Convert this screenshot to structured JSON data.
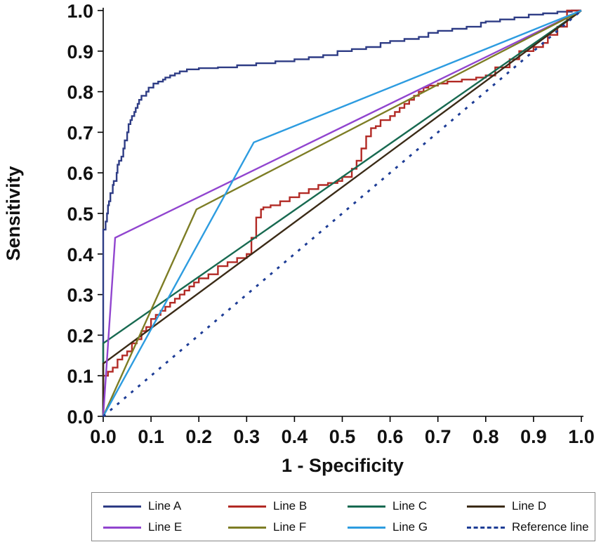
{
  "chart_data": {
    "type": "line",
    "subtype": "roc-curves",
    "title": "",
    "xlabel": "1 - Specificity",
    "ylabel": "Sensitivity",
    "xlim": [
      0,
      1
    ],
    "ylim": [
      0,
      1
    ],
    "x_ticks": [
      "0.0",
      "0.1",
      "0.2",
      "0.3",
      "0.4",
      "0.5",
      "0.6",
      "0.7",
      "0.8",
      "0.9",
      "1.0"
    ],
    "y_ticks": [
      "0.0",
      "0.1",
      "0.2",
      "0.3",
      "0.4",
      "0.5",
      "0.6",
      "0.7",
      "0.8",
      "0.9",
      "1.0"
    ],
    "grid": false,
    "legend_position": "bottom",
    "axis_color": "#000000",
    "text_color": "#111111",
    "series": [
      {
        "name": "Line A",
        "color": "#2e3c85",
        "step": true,
        "dashed": false,
        "points": [
          [
            0,
            0
          ],
          [
            0,
            0.44
          ],
          [
            0.005,
            0.46
          ],
          [
            0.008,
            0.48
          ],
          [
            0.01,
            0.5
          ],
          [
            0.012,
            0.52
          ],
          [
            0.015,
            0.53
          ],
          [
            0.02,
            0.55
          ],
          [
            0.022,
            0.57
          ],
          [
            0.028,
            0.58
          ],
          [
            0.03,
            0.6
          ],
          [
            0.033,
            0.62
          ],
          [
            0.038,
            0.63
          ],
          [
            0.042,
            0.64
          ],
          [
            0.045,
            0.66
          ],
          [
            0.05,
            0.68
          ],
          [
            0.053,
            0.7
          ],
          [
            0.057,
            0.72
          ],
          [
            0.06,
            0.73
          ],
          [
            0.065,
            0.74
          ],
          [
            0.068,
            0.75
          ],
          [
            0.072,
            0.76
          ],
          [
            0.075,
            0.77
          ],
          [
            0.08,
            0.78
          ],
          [
            0.09,
            0.79
          ],
          [
            0.095,
            0.8
          ],
          [
            0.105,
            0.81
          ],
          [
            0.115,
            0.82
          ],
          [
            0.125,
            0.825
          ],
          [
            0.13,
            0.83
          ],
          [
            0.14,
            0.835
          ],
          [
            0.15,
            0.84
          ],
          [
            0.16,
            0.845
          ],
          [
            0.175,
            0.85
          ],
          [
            0.2,
            0.855
          ],
          [
            0.24,
            0.858
          ],
          [
            0.28,
            0.86
          ],
          [
            0.32,
            0.865
          ],
          [
            0.36,
            0.87
          ],
          [
            0.4,
            0.875
          ],
          [
            0.43,
            0.88
          ],
          [
            0.46,
            0.885
          ],
          [
            0.49,
            0.89
          ],
          [
            0.52,
            0.9
          ],
          [
            0.55,
            0.905
          ],
          [
            0.58,
            0.91
          ],
          [
            0.6,
            0.92
          ],
          [
            0.63,
            0.925
          ],
          [
            0.66,
            0.93
          ],
          [
            0.68,
            0.935
          ],
          [
            0.7,
            0.945
          ],
          [
            0.73,
            0.95
          ],
          [
            0.76,
            0.955
          ],
          [
            0.79,
            0.96
          ],
          [
            0.8,
            0.97
          ],
          [
            0.83,
            0.973
          ],
          [
            0.86,
            0.978
          ],
          [
            0.89,
            0.983
          ],
          [
            0.92,
            0.99
          ],
          [
            0.95,
            0.993
          ],
          [
            0.98,
            0.997
          ],
          [
            1,
            1
          ]
        ]
      },
      {
        "name": "Line B",
        "color": "#b22a25",
        "step": true,
        "dashed": false,
        "points": [
          [
            0,
            0
          ],
          [
            0,
            0.08
          ],
          [
            0.01,
            0.1
          ],
          [
            0.02,
            0.11
          ],
          [
            0.03,
            0.12
          ],
          [
            0.04,
            0.14
          ],
          [
            0.05,
            0.15
          ],
          [
            0.06,
            0.16
          ],
          [
            0.07,
            0.18
          ],
          [
            0.08,
            0.19
          ],
          [
            0.09,
            0.21
          ],
          [
            0.1,
            0.22
          ],
          [
            0.11,
            0.24
          ],
          [
            0.12,
            0.25
          ],
          [
            0.13,
            0.26
          ],
          [
            0.14,
            0.27
          ],
          [
            0.15,
            0.28
          ],
          [
            0.16,
            0.29
          ],
          [
            0.17,
            0.3
          ],
          [
            0.18,
            0.31
          ],
          [
            0.19,
            0.32
          ],
          [
            0.2,
            0.33
          ],
          [
            0.22,
            0.34
          ],
          [
            0.24,
            0.35
          ],
          [
            0.26,
            0.37
          ],
          [
            0.28,
            0.38
          ],
          [
            0.3,
            0.39
          ],
          [
            0.31,
            0.4
          ],
          [
            0.32,
            0.44
          ],
          [
            0.33,
            0.49
          ],
          [
            0.335,
            0.51
          ],
          [
            0.35,
            0.515
          ],
          [
            0.37,
            0.52
          ],
          [
            0.39,
            0.53
          ],
          [
            0.41,
            0.54
          ],
          [
            0.43,
            0.55
          ],
          [
            0.45,
            0.56
          ],
          [
            0.47,
            0.57
          ],
          [
            0.49,
            0.575
          ],
          [
            0.5,
            0.58
          ],
          [
            0.52,
            0.59
          ],
          [
            0.53,
            0.61
          ],
          [
            0.54,
            0.63
          ],
          [
            0.55,
            0.66
          ],
          [
            0.56,
            0.69
          ],
          [
            0.57,
            0.71
          ],
          [
            0.58,
            0.715
          ],
          [
            0.6,
            0.73
          ],
          [
            0.61,
            0.74
          ],
          [
            0.62,
            0.75
          ],
          [
            0.63,
            0.76
          ],
          [
            0.64,
            0.77
          ],
          [
            0.65,
            0.78
          ],
          [
            0.66,
            0.79
          ],
          [
            0.67,
            0.8
          ],
          [
            0.68,
            0.81
          ],
          [
            0.7,
            0.815
          ],
          [
            0.72,
            0.82
          ],
          [
            0.75,
            0.825
          ],
          [
            0.78,
            0.83
          ],
          [
            0.8,
            0.835
          ],
          [
            0.82,
            0.84
          ],
          [
            0.85,
            0.86
          ],
          [
            0.87,
            0.88
          ],
          [
            0.9,
            0.9
          ],
          [
            0.92,
            0.91
          ],
          [
            0.93,
            0.92
          ],
          [
            0.95,
            0.94
          ],
          [
            0.97,
            0.96
          ],
          [
            1,
            1
          ]
        ]
      },
      {
        "name": "Line C",
        "color": "#186a51",
        "step": false,
        "dashed": false,
        "points": [
          [
            0,
            0
          ],
          [
            0,
            0.18
          ],
          [
            1,
            1
          ]
        ]
      },
      {
        "name": "Line D",
        "color": "#3b2b17",
        "step": false,
        "dashed": false,
        "points": [
          [
            0,
            0
          ],
          [
            0,
            0.13
          ],
          [
            1,
            1
          ]
        ]
      },
      {
        "name": "Line E",
        "color": "#9145cf",
        "step": false,
        "dashed": false,
        "points": [
          [
            0,
            0
          ],
          [
            0.025,
            0.44
          ],
          [
            1,
            1
          ]
        ]
      },
      {
        "name": "Line F",
        "color": "#7d7d25",
        "step": false,
        "dashed": false,
        "points": [
          [
            0,
            0
          ],
          [
            0.195,
            0.51
          ],
          [
            1,
            1
          ]
        ]
      },
      {
        "name": "Line G",
        "color": "#2d9ce0",
        "step": false,
        "dashed": false,
        "points": [
          [
            0,
            0
          ],
          [
            0.315,
            0.675
          ],
          [
            1,
            1
          ]
        ]
      },
      {
        "name": "Reference line",
        "color": "#1e3d96",
        "step": false,
        "dashed": true,
        "points": [
          [
            0,
            0
          ],
          [
            1,
            1
          ]
        ]
      }
    ],
    "legend_rows": [
      [
        "Line A",
        "Line B",
        "Line C",
        "Line D"
      ],
      [
        "Line E",
        "Line F",
        "Line G",
        "Reference line"
      ]
    ]
  }
}
